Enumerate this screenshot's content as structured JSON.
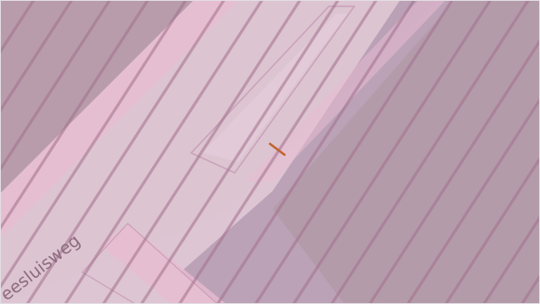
{
  "map": {
    "street_label": "eesluisweg",
    "colors": {
      "background": "#ddc5d3",
      "pink_band": "#e8bcd1",
      "purple_parcel": "#b79db2",
      "dark_parcel": "#b59aa9",
      "hatch_line": "#a2708d",
      "outline": "#c9a1b9",
      "marker": "#c2632c",
      "label_text": "#8d6b80"
    },
    "icons": [
      "pencil-marker-icon"
    ]
  }
}
